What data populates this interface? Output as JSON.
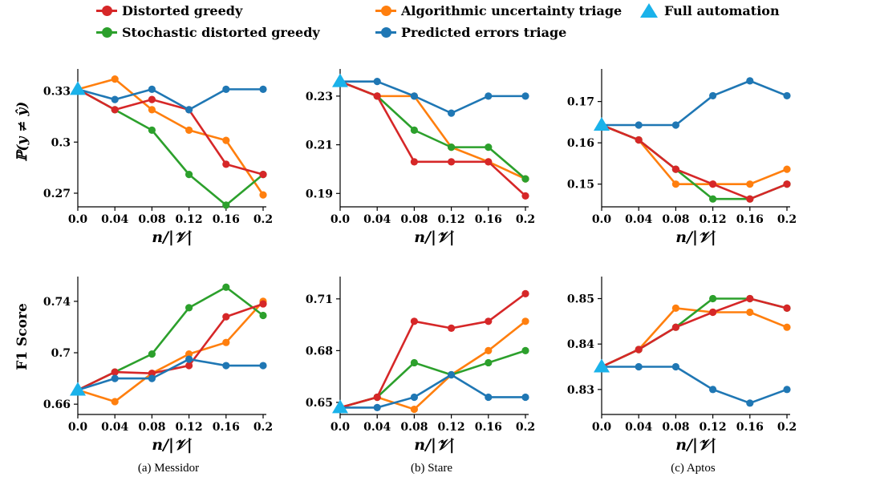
{
  "colors": {
    "distorted_greedy": "#d62728",
    "stochastic_distorted_greedy": "#2ca02c",
    "algorithmic_uncertainty_triage": "#ff7f0e",
    "predicted_errors_triage": "#1f77b4",
    "full_automation": "#1ab2ea"
  },
  "legend": [
    {
      "key": "distorted_greedy",
      "label": "Distorted greedy",
      "marker": "circle"
    },
    {
      "key": "algorithmic_uncertainty_triage",
      "label": "Algorithmic uncertainty triage",
      "marker": "circle"
    },
    {
      "key": "full_automation",
      "label": "Full automation",
      "marker": "triangle"
    },
    {
      "key": "stochastic_distorted_greedy",
      "label": "Stochastic distorted greedy",
      "marker": "circle"
    },
    {
      "key": "predicted_errors_triage",
      "label": "Predicted errors triage",
      "marker": "circle"
    }
  ],
  "row_labels": {
    "error": "ℙ(y ≠ ŷ)",
    "f1": "F1 Score"
  },
  "xlabel": "n/|𝒱|",
  "captions": [
    "(a) Messidor",
    "(b) Stare",
    "(c) Aptos"
  ],
  "chart_data": [
    {
      "type": "line",
      "dataset": "Messidor",
      "metric": "error",
      "x": [
        0.0,
        0.04,
        0.08,
        0.12,
        0.16,
        0.2
      ],
      "xticks": [
        "0.0",
        "0.04",
        "0.08",
        "0.12",
        "0.16",
        "0.2"
      ],
      "yticks": [
        0.27,
        0.3,
        0.33
      ],
      "ytick_labels": [
        "0.27",
        "0.3",
        "0.33"
      ],
      "ylim": [
        0.262,
        0.342
      ],
      "series": [
        {
          "key": "algorithmic_uncertainty_triage",
          "values": [
            0.331,
            0.337,
            0.319,
            0.307,
            0.301,
            0.269
          ]
        },
        {
          "key": "stochastic_distorted_greedy",
          "values": [
            0.331,
            0.319,
            0.307,
            0.281,
            0.263,
            0.281
          ]
        },
        {
          "key": "distorted_greedy",
          "values": [
            0.331,
            0.319,
            0.325,
            0.319,
            0.287,
            0.281
          ]
        },
        {
          "key": "predicted_errors_triage",
          "values": [
            0.331,
            0.325,
            0.331,
            0.319,
            0.331,
            0.331
          ]
        }
      ],
      "full_automation": 0.331
    },
    {
      "type": "line",
      "dataset": "Stare",
      "metric": "error",
      "x": [
        0.0,
        0.04,
        0.08,
        0.12,
        0.16,
        0.2
      ],
      "xticks": [
        "0.0",
        "0.04",
        "0.08",
        "0.12",
        "0.16",
        "0.2"
      ],
      "yticks": [
        0.19,
        0.21,
        0.23
      ],
      "ytick_labels": [
        "0.19",
        "0.21",
        "0.23"
      ],
      "ylim": [
        0.1845,
        0.2405
      ],
      "series": [
        {
          "key": "algorithmic_uncertainty_triage",
          "values": [
            0.236,
            0.23,
            0.23,
            0.209,
            0.203,
            0.196
          ]
        },
        {
          "key": "stochastic_distorted_greedy",
          "values": [
            0.236,
            0.23,
            0.216,
            0.209,
            0.209,
            0.196
          ]
        },
        {
          "key": "distorted_greedy",
          "values": [
            0.236,
            0.23,
            0.203,
            0.203,
            0.203,
            0.189
          ]
        },
        {
          "key": "predicted_errors_triage",
          "values": [
            0.236,
            0.236,
            0.23,
            0.223,
            0.23,
            0.23
          ]
        }
      ],
      "full_automation": 0.236
    },
    {
      "type": "line",
      "dataset": "Aptos",
      "metric": "error",
      "x": [
        0.0,
        0.04,
        0.08,
        0.12,
        0.16,
        0.2
      ],
      "xticks": [
        "0.0",
        "0.04",
        "0.08",
        "0.12",
        "0.16",
        "0.2"
      ],
      "yticks": [
        0.15,
        0.16,
        0.17
      ],
      "ytick_labels": [
        "0.15",
        "0.16",
        "0.17"
      ],
      "ylim": [
        0.1445,
        0.1775
      ],
      "series": [
        {
          "key": "algorithmic_uncertainty_triage",
          "values": [
            0.1643,
            0.1607,
            0.15,
            0.15,
            0.15,
            0.1536
          ]
        },
        {
          "key": "stochastic_distorted_greedy",
          "values": [
            0.1643,
            0.1607,
            0.1536,
            0.1464,
            0.1464,
            0.15
          ]
        },
        {
          "key": "distorted_greedy",
          "values": [
            0.1643,
            0.1607,
            0.1536,
            0.15,
            0.1464,
            0.15
          ]
        },
        {
          "key": "predicted_errors_triage",
          "values": [
            0.1643,
            0.1643,
            0.1643,
            0.1714,
            0.175,
            0.1714
          ]
        }
      ],
      "full_automation": 0.1643
    },
    {
      "type": "line",
      "dataset": "Messidor",
      "metric": "f1",
      "x": [
        0.0,
        0.04,
        0.08,
        0.12,
        0.16,
        0.2
      ],
      "xticks": [
        "0.0",
        "0.04",
        "0.08",
        "0.12",
        "0.16",
        "0.2"
      ],
      "yticks": [
        0.66,
        0.7,
        0.74
      ],
      "ytick_labels": [
        "0.66",
        "0.7",
        "0.74"
      ],
      "ylim": [
        0.652,
        0.758
      ],
      "series": [
        {
          "key": "algorithmic_uncertainty_triage",
          "values": [
            0.671,
            0.662,
            0.684,
            0.699,
            0.708,
            0.74
          ]
        },
        {
          "key": "stochastic_distorted_greedy",
          "values": [
            0.671,
            0.685,
            0.699,
            0.735,
            0.751,
            0.729
          ]
        },
        {
          "key": "distorted_greedy",
          "values": [
            0.671,
            0.685,
            0.684,
            0.69,
            0.728,
            0.738
          ]
        },
        {
          "key": "predicted_errors_triage",
          "values": [
            0.671,
            0.68,
            0.68,
            0.695,
            0.69,
            0.69
          ]
        }
      ],
      "full_automation": 0.671
    },
    {
      "type": "line",
      "dataset": "Stare",
      "metric": "f1",
      "x": [
        0.0,
        0.04,
        0.08,
        0.12,
        0.16,
        0.2
      ],
      "xticks": [
        "0.0",
        "0.04",
        "0.08",
        "0.12",
        "0.16",
        "0.2"
      ],
      "yticks": [
        0.65,
        0.68,
        0.71
      ],
      "ytick_labels": [
        "0.65",
        "0.68",
        "0.71"
      ],
      "ylim": [
        0.643,
        0.722
      ],
      "series": [
        {
          "key": "algorithmic_uncertainty_triage",
          "values": [
            0.647,
            0.653,
            0.646,
            0.666,
            0.68,
            0.697
          ]
        },
        {
          "key": "stochastic_distorted_greedy",
          "values": [
            0.647,
            0.653,
            0.673,
            0.666,
            0.673,
            0.68
          ]
        },
        {
          "key": "distorted_greedy",
          "values": [
            0.647,
            0.653,
            0.697,
            0.693,
            0.697,
            0.713
          ]
        },
        {
          "key": "predicted_errors_triage",
          "values": [
            0.647,
            0.647,
            0.653,
            0.666,
            0.653,
            0.653
          ]
        }
      ],
      "full_automation": 0.647
    },
    {
      "type": "line",
      "dataset": "Aptos",
      "metric": "f1",
      "x": [
        0.0,
        0.04,
        0.08,
        0.12,
        0.16,
        0.2
      ],
      "xticks": [
        "0.0",
        "0.04",
        "0.08",
        "0.12",
        "0.16",
        "0.2"
      ],
      "yticks": [
        0.83,
        0.84,
        0.85
      ],
      "ytick_labels": [
        "0.83",
        "0.84",
        "0.85"
      ],
      "ylim": [
        0.8245,
        0.8545
      ],
      "series": [
        {
          "key": "algorithmic_uncertainty_triage",
          "values": [
            0.835,
            0.8388,
            0.8479,
            0.847,
            0.847,
            0.8437
          ]
        },
        {
          "key": "stochastic_distorted_greedy",
          "values": [
            0.835,
            0.8388,
            0.8437,
            0.85,
            0.85,
            0.8479
          ]
        },
        {
          "key": "distorted_greedy",
          "values": [
            0.835,
            0.8388,
            0.8437,
            0.847,
            0.85,
            0.8479
          ]
        },
        {
          "key": "predicted_errors_triage",
          "values": [
            0.835,
            0.835,
            0.835,
            0.83,
            0.827,
            0.83
          ]
        }
      ],
      "full_automation": 0.835
    }
  ]
}
